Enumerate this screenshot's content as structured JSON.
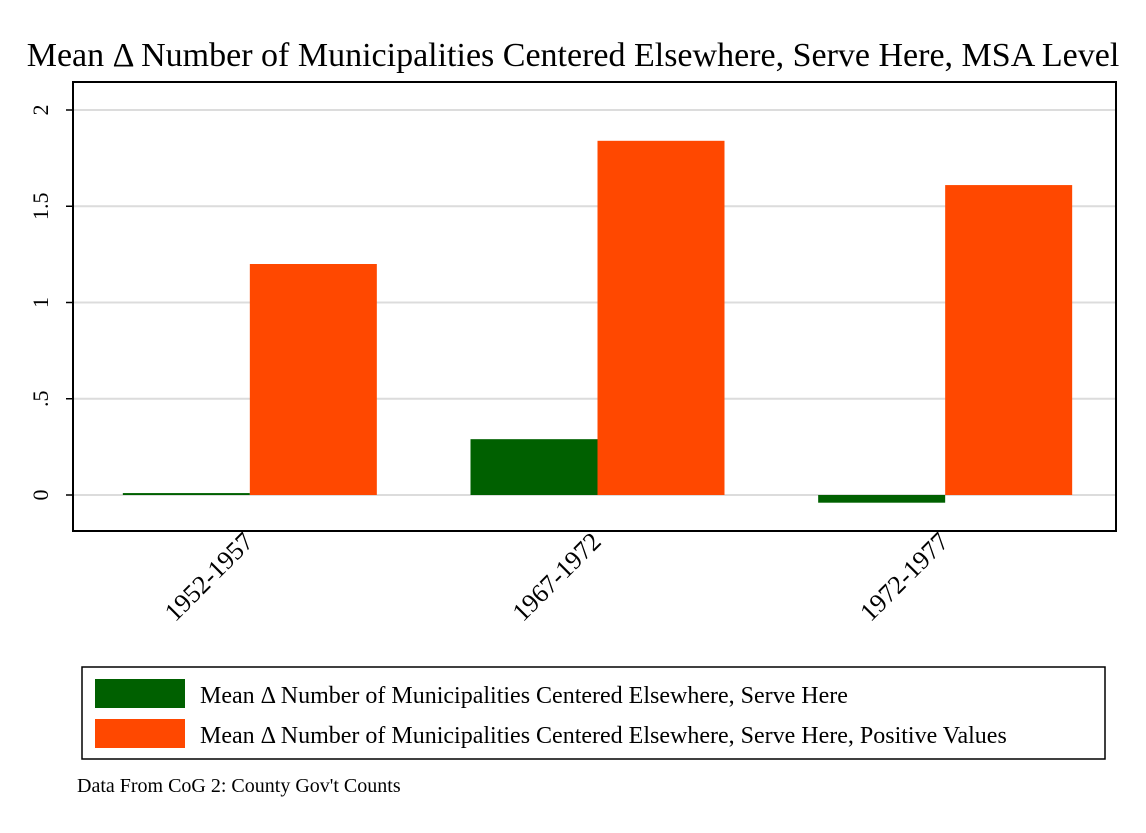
{
  "chart_data": {
    "type": "bar",
    "title": "Mean Δ Number of Municipalities Centered Elsewhere, Serve Here, MSA Level",
    "categories": [
      "1952-1957",
      "1967-1972",
      "1972-1977"
    ],
    "series": [
      {
        "name": "Mean Δ Number of Municipalities Centered Elsewhere, Serve Here",
        "color": "#006000",
        "values": [
          0.01,
          0.29,
          -0.04
        ]
      },
      {
        "name": "Mean Δ Number of Municipalities Centered Elsewhere, Serve Here, Positive Values",
        "color": "#ff4800",
        "values": [
          1.2,
          1.84,
          1.61
        ]
      }
    ],
    "ylim": [
      -0.19,
      2.15
    ],
    "yticks": [
      0,
      0.5,
      1,
      1.5,
      2
    ],
    "ytick_labels": [
      "0",
      ".5",
      "1",
      "1.5",
      "2"
    ],
    "grid": true,
    "legend_position": "bottom",
    "note": "Data From CoG 2: County Gov't Counts"
  }
}
